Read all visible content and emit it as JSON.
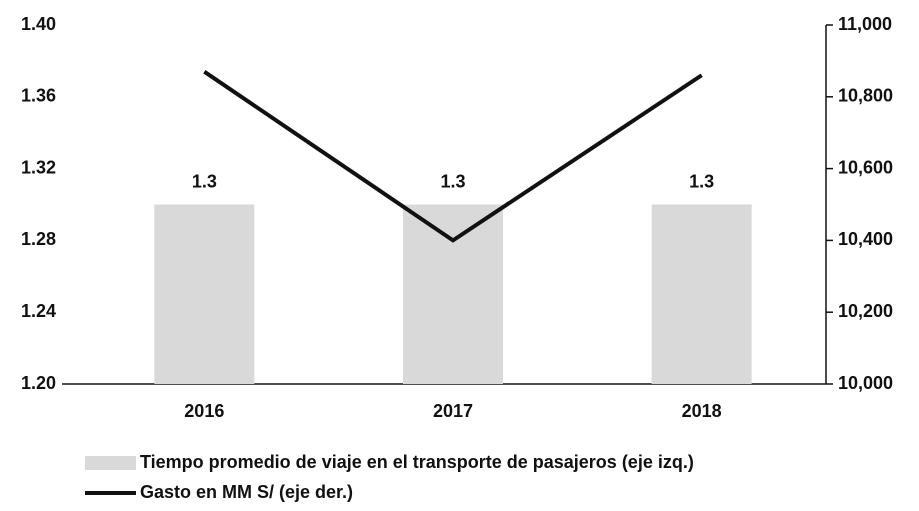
{
  "chart_data": {
    "type": "bar",
    "categories": [
      "2016",
      "2017",
      "2018"
    ],
    "series": [
      {
        "name": "Tiempo promedio de viaje en el transporte de pasajeros (eje izq.)",
        "color": "#d9d9d9",
        "values": [
          1.3,
          1.3,
          1.3
        ]
      },
      {
        "name": "Gasto en MM S/ (eje der.)",
        "color": "#111111",
        "values": [
          10870,
          10400,
          10860
        ],
        "axis": "y2",
        "type": "line"
      }
    ],
    "ylim": [
      1.2,
      1.4
    ],
    "yticks": [
      {
        "value": 1.2,
        "label": "1.20"
      },
      1.24,
      1.28,
      1.32,
      1.36,
      {
        "value": 1.4,
        "label": "1.40"
      }
    ],
    "y2lim": [
      10000,
      11000
    ],
    "y2ticks": [
      {
        "value": 10000,
        "label": "10,000"
      },
      {
        "value": 10200,
        "label": "10,200"
      },
      {
        "value": 10400,
        "label": "10,400"
      },
      {
        "value": 10600,
        "label": "10,600"
      },
      {
        "value": 10800,
        "label": "10,800"
      },
      {
        "value": 11000,
        "label": "11,000"
      }
    ],
    "show_value_labels": true,
    "grid": false
  }
}
